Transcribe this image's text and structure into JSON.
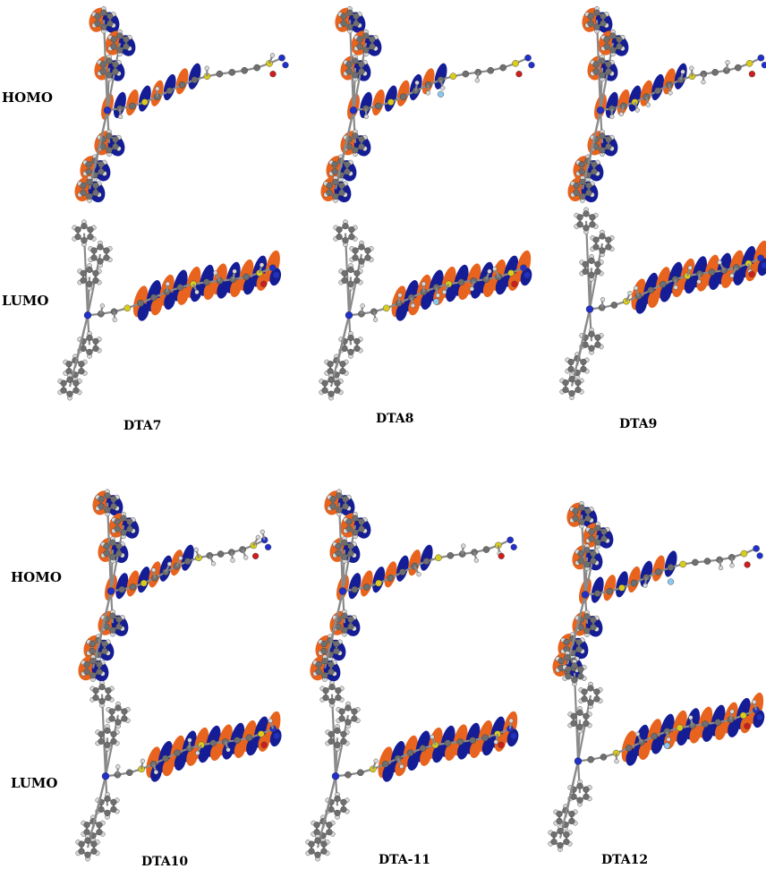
{
  "row_labels": {
    "homo": "HOMO",
    "lumo": "LUMO"
  },
  "molecules": [
    {
      "label": "DTA7"
    },
    {
      "label": "DTA8"
    },
    {
      "label": "DTA9"
    },
    {
      "label": "DTA10"
    },
    {
      "label": "DTA-11"
    },
    {
      "label": "DTA12"
    }
  ],
  "colors": {
    "lobe_orange": "#e8641e",
    "lobe_blue": "#141c96",
    "carbon": "#6f6f6f",
    "hydrogen": "#d8d8d8",
    "sulfur": "#d8cc1e",
    "oxygen": "#cc1e1e",
    "nitrogen": "#2030c8",
    "fluorine": "#8cc8f0"
  }
}
